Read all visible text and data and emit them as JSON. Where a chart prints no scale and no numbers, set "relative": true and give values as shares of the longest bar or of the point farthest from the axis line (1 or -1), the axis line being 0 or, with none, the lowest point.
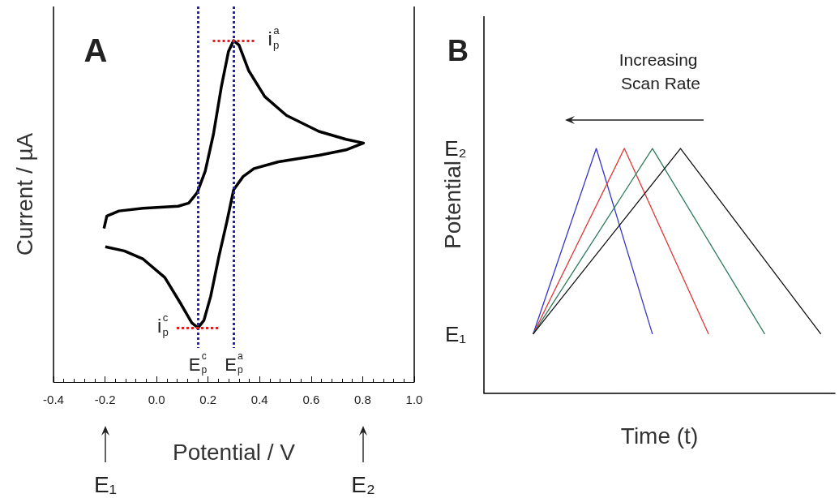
{
  "chart_data": [
    {
      "type": "line",
      "relative": true,
      "xlabel": "Potential / V",
      "ylabel": "Current / µA",
      "xlim": [
        -0.4,
        1.0
      ],
      "xticks": [
        -0.4,
        -0.2,
        {
          "value": 0,
          "label": "0.0"
        },
        0.2,
        0.4,
        0.6,
        0.8,
        {
          "value": 1,
          "label": "1.0"
        }
      ],
      "tick_labels": "x",
      "marker": "none",
      "line_style": "solid",
      "series": [
        {
          "color": "#000000",
          "x": [
            -0.204,
            -0.193,
            -0.146,
            -0.052,
            0.084,
            0.125,
            0.158,
            0.189,
            0.221,
            0.252,
            0.279,
            0.299,
            0.32,
            0.357,
            0.42,
            0.504,
            0.63,
            0.735,
            0.803,
            0.735,
            0.63,
            0.473,
            0.378,
            0.336,
            0.299,
            0.273,
            0.242,
            0.21,
            0.184,
            0.161,
            0.137,
            0.095,
            0.032,
            -0.052,
            -0.125,
            -0.199
          ],
          "values": [
            0.45,
            0.486,
            0.501,
            0.509,
            0.515,
            0.524,
            0.555,
            0.618,
            0.727,
            0.867,
            0.968,
            1.0,
            0.987,
            0.913,
            0.836,
            0.781,
            0.734,
            0.711,
            0.7,
            0.68,
            0.664,
            0.645,
            0.625,
            0.602,
            0.563,
            0.47,
            0.368,
            0.251,
            0.181,
            0.159,
            0.173,
            0.228,
            0.306,
            0.36,
            0.384,
            0.396
          ]
        }
      ],
      "ref_lines": [
        {
          "axis": "x",
          "value": 0.16,
          "label": "E$_{p}$$^{c}$",
          "color": "#2222bb",
          "line_style": "dotted"
        },
        {
          "axis": "x",
          "value": 0.3,
          "label": "E$_{p}$$^{a}$",
          "color": "#2222bb",
          "line_style": "dotted"
        }
      ],
      "annotations": [
        "A",
        {
          "text": "i$_{p}$$^{a}$",
          "x": 0.3,
          "y": 1.0
        },
        {
          "text": "i$_{p}$$^{c}$",
          "x": 0.16,
          "y": 0.159
        },
        "E₁",
        "E₂"
      ]
    },
    {
      "type": "line",
      "relative": true,
      "xlabel": "Time (t)",
      "ylabel": "Potential",
      "tick_labels": false,
      "marker": "none",
      "line_style": "solid",
      "categories": [
        null,
        null,
        null,
        null,
        null,
        null,
        null,
        null,
        null,
        null,
        null,
        null,
        null,
        null,
        null,
        null,
        null,
        null,
        null,
        null,
        null,
        null,
        null,
        null,
        null,
        null,
        null,
        null,
        null,
        null,
        null,
        null,
        null,
        null,
        null,
        null,
        null,
        null,
        null,
        null,
        null,
        null,
        null,
        null,
        null,
        null,
        null,
        null,
        null,
        null,
        null
      ],
      "series": [
        {
          "color": "#3535c8",
          "values": [
            null,
            null,
            null,
            null,
            null,
            null,
            null,
            0.242,
            null,
            null,
            null,
            null,
            null,
            null,
            null,
            null,
            1,
            null,
            null,
            null,
            null,
            null,
            null,
            null,
            0.242,
            null,
            null,
            null,
            null,
            null,
            null,
            null,
            null,
            null,
            null,
            null,
            null,
            null,
            null,
            null,
            null,
            null,
            null,
            null,
            null,
            null,
            null,
            null,
            null,
            null,
            null
          ]
        },
        {
          "color": "#e03535",
          "values": [
            null,
            null,
            null,
            null,
            null,
            null,
            null,
            0.242,
            null,
            null,
            null,
            null,
            null,
            null,
            null,
            null,
            null,
            null,
            null,
            null,
            1,
            null,
            null,
            null,
            null,
            null,
            null,
            null,
            null,
            null,
            null,
            null,
            0.242,
            null,
            null,
            null,
            null,
            null,
            null,
            null,
            null,
            null,
            null,
            null,
            null,
            null,
            null,
            null,
            null,
            null,
            null
          ]
        },
        {
          "color": "#2e7d5b",
          "values": [
            null,
            null,
            null,
            null,
            null,
            null,
            null,
            0.242,
            null,
            null,
            null,
            null,
            null,
            null,
            null,
            null,
            null,
            null,
            null,
            null,
            null,
            null,
            null,
            null,
            1,
            null,
            null,
            null,
            null,
            null,
            null,
            null,
            null,
            null,
            null,
            null,
            null,
            null,
            null,
            null,
            0.242,
            null,
            null,
            null,
            null,
            null,
            null,
            null,
            null,
            null,
            null
          ]
        },
        {
          "color": "#111111",
          "values": [
            null,
            null,
            null,
            null,
            null,
            null,
            null,
            0.242,
            null,
            null,
            null,
            null,
            null,
            null,
            null,
            null,
            null,
            null,
            null,
            null,
            null,
            null,
            null,
            null,
            null,
            null,
            null,
            null,
            1,
            null,
            null,
            null,
            null,
            null,
            null,
            null,
            null,
            null,
            null,
            null,
            null,
            null,
            null,
            null,
            null,
            null,
            null,
            null,
            0.242,
            null,
            null
          ]
        }
      ],
      "annotations": [
        "B",
        "Increasing Scan Rate",
        "E₂",
        "E₁"
      ]
    }
  ]
}
